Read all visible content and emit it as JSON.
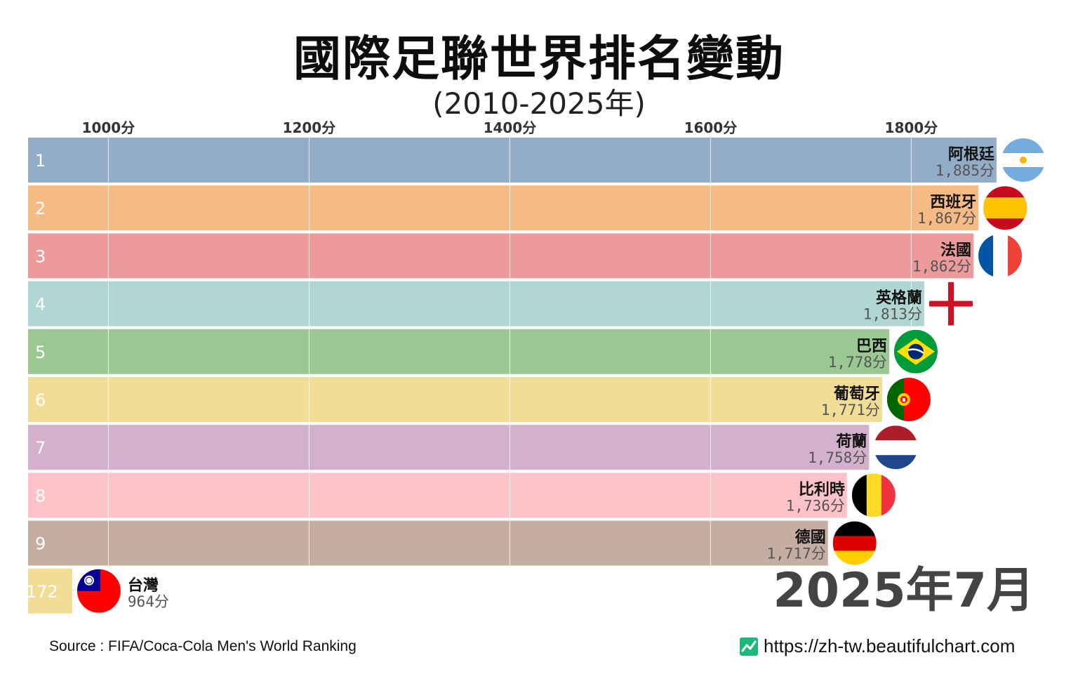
{
  "header": {
    "title": "國際足聯世界排名變動",
    "subtitle": "(2010-2025年)"
  },
  "footer": {
    "source": "Source : FIFA/Coca-Cola Men's World Ranking",
    "site": "https://zh-tw.beautifulchart.com"
  },
  "colors": {
    "grid": "#ffffff",
    "axis_text": "#333333",
    "value_text": "#555555",
    "period_text": "#444444"
  },
  "chart_data": {
    "type": "bar",
    "orientation": "horizontal",
    "period": "2025年7月",
    "unit": "分",
    "ticks": [
      "1000分",
      "1200分",
      "1400分",
      "1600分",
      "1800分"
    ],
    "tick_values": [
      1000,
      1200,
      1400,
      1600,
      1800
    ],
    "xlim": [
      920,
      1890
    ],
    "bars": [
      {
        "rank": "1",
        "name": "阿根廷",
        "value": 1885,
        "label": "1,885分",
        "color": "#93adc9",
        "flag": "argentina-flag"
      },
      {
        "rank": "2",
        "name": "西班牙",
        "value": 1867,
        "label": "1,867分",
        "color": "#f6bb84",
        "flag": "spain-flag"
      },
      {
        "rank": "3",
        "name": "法國",
        "value": 1862,
        "label": "1,862分",
        "color": "#ec9a9a",
        "flag": "france-flag"
      },
      {
        "rank": "4",
        "name": "英格蘭",
        "value": 1813,
        "label": "1,813分",
        "color": "#b0d6d3",
        "flag": "england-flag"
      },
      {
        "rank": "5",
        "name": "巴西",
        "value": 1778,
        "label": "1,778分",
        "color": "#9bc793",
        "flag": "brazil-flag"
      },
      {
        "rank": "6",
        "name": "葡萄牙",
        "value": 1771,
        "label": "1,771分",
        "color": "#f1dd96",
        "flag": "portugal-flag"
      },
      {
        "rank": "7",
        "name": "荷蘭",
        "value": 1758,
        "label": "1,758分",
        "color": "#d3b1cc",
        "flag": "netherlands-flag"
      },
      {
        "rank": "8",
        "name": "比利時",
        "value": 1736,
        "label": "1,736分",
        "color": "#fdc3c8",
        "flag": "belgium-flag"
      },
      {
        "rank": "9",
        "name": "德國",
        "value": 1717,
        "label": "1,717分",
        "color": "#c6ada2",
        "flag": "germany-flag"
      },
      {
        "rank": "172",
        "name": "台灣",
        "value": 964,
        "label": "964分",
        "color": "#f1dd96",
        "flag": "taiwan-flag"
      }
    ]
  }
}
